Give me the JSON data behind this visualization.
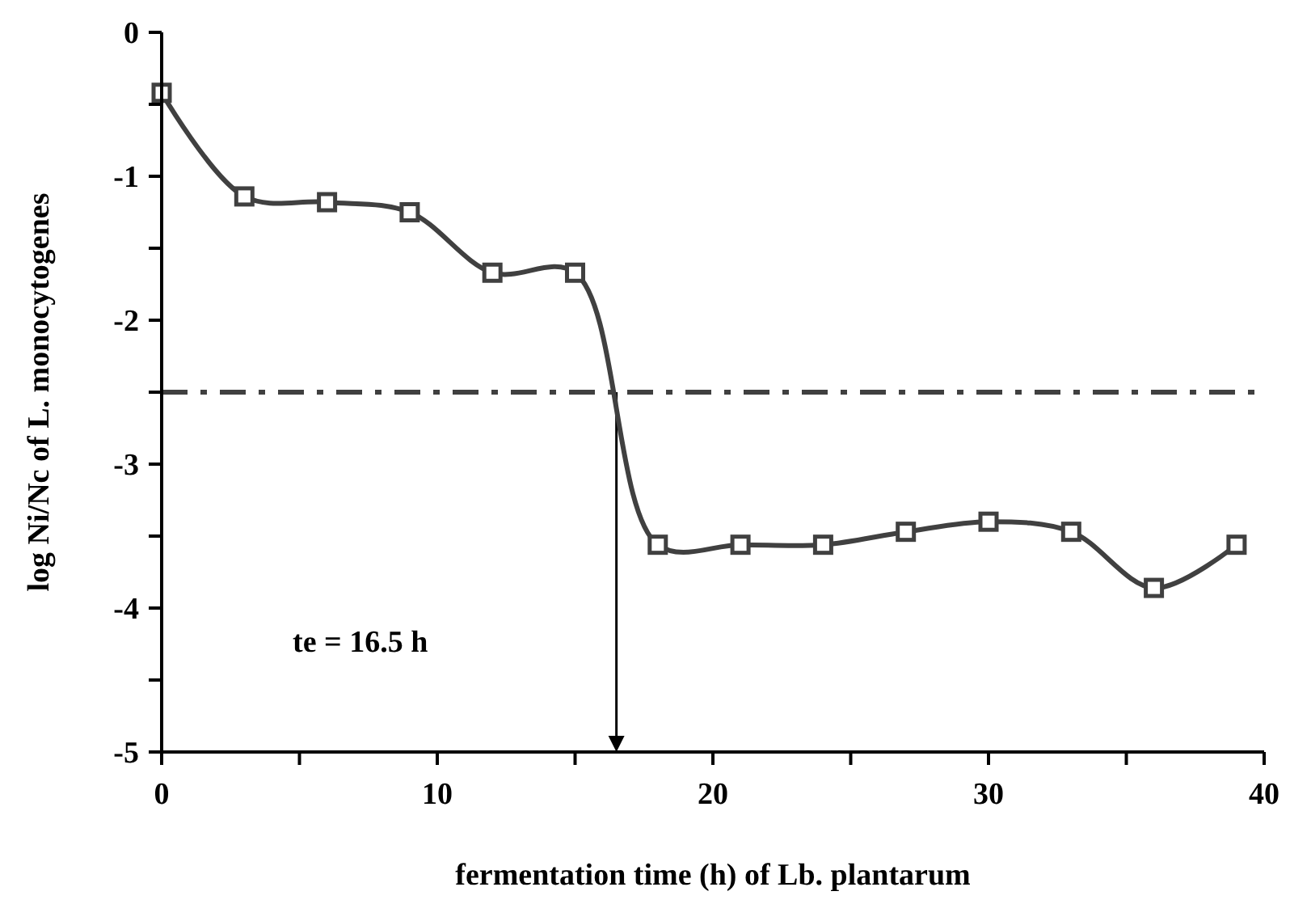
{
  "chart_data": {
    "type": "line",
    "xlabel": "fermentation time (h) of Lb. plantarum",
    "ylabel": "log Ni/Nc of L. monocytogenes",
    "x": [
      0,
      3,
      6,
      9,
      12,
      15,
      18,
      21,
      24,
      27,
      30,
      33,
      36,
      39
    ],
    "series": [
      {
        "color": "#404040",
        "values": [
          -0.42,
          -1.14,
          -1.18,
          -1.25,
          -1.67,
          -1.67,
          -3.56,
          -3.56,
          -3.56,
          -3.47,
          -3.4,
          -3.47,
          -3.86,
          -3.56
        ]
      }
    ],
    "marker": "square",
    "line_style": "solid",
    "grid": false,
    "xlim": [
      0,
      40
    ],
    "xticks": [
      0,
      {
        "value": 5,
        "label": null
      },
      10,
      {
        "value": 15,
        "label": null
      },
      20,
      {
        "value": 25,
        "label": null
      },
      30,
      {
        "value": 35,
        "label": null
      },
      40
    ],
    "ylim": [
      -5,
      0
    ],
    "yticks": [
      -5,
      {
        "value": -4.5,
        "label": null
      },
      -4,
      {
        "value": -3.5,
        "label": null
      },
      -3,
      {
        "value": -2.5,
        "label": null
      },
      -2,
      {
        "value": -1.5,
        "label": null
      },
      -1,
      {
        "value": -0.5,
        "label": null
      },
      0
    ],
    "ref_lines": [
      {
        "axis": "y",
        "value": -2.5,
        "color": "#404040",
        "line_style": "dashed"
      },
      {
        "axis": "x",
        "value": 16.5,
        "color": "#000000",
        "line_style": "solid"
      }
    ],
    "annotations": [
      "te = 16.5 h"
    ]
  }
}
